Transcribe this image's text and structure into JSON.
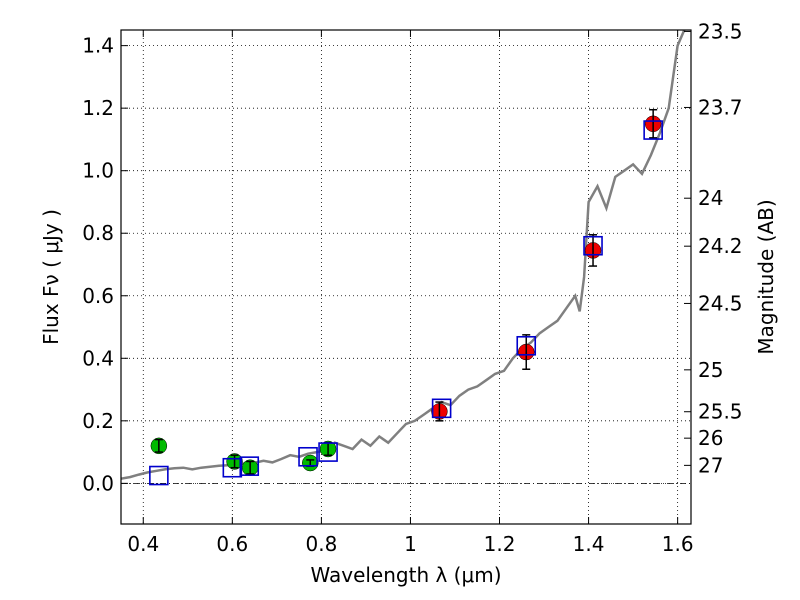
{
  "chart_data": {
    "type": "scatter",
    "xlabel": "Wavelength  λ (μm)",
    "ylabel": "Flux  Fν  ( μJy )",
    "ylabel_right": "Magnitude (AB)",
    "xlim": [
      0.35,
      1.63
    ],
    "ylim": [
      -0.13,
      1.45
    ],
    "x_ticks": [
      0.4,
      0.6,
      0.8,
      1.0,
      1.2,
      1.4,
      1.6
    ],
    "x_tick_labels": [
      "0.4",
      "0.6",
      "0.8",
      "1",
      "1.2",
      "1.4",
      "1.6"
    ],
    "y_ticks": [
      0.0,
      0.2,
      0.4,
      0.6,
      0.8,
      1.0,
      1.2,
      1.4
    ],
    "y_tick_labels": [
      "0.0",
      "0.2",
      "0.4",
      "0.6",
      "0.8",
      "1.0",
      "1.2",
      "1.4"
    ],
    "mag_ticks": [
      23.5,
      23.7,
      24,
      24.2,
      24.5,
      25,
      25.5,
      26,
      27
    ],
    "mag_tick_labels": [
      "23.5",
      "23.7",
      "24",
      "24.2",
      "24.5",
      "25",
      "25.5",
      "26",
      "27"
    ],
    "grid": true,
    "colors": {
      "model": "#808080",
      "green": "#00bb00",
      "red": "#ee0000",
      "box": "#0000cc"
    },
    "model_spectrum": {
      "x": [
        0.35,
        0.37,
        0.39,
        0.41,
        0.43,
        0.45,
        0.47,
        0.49,
        0.51,
        0.53,
        0.55,
        0.57,
        0.59,
        0.61,
        0.63,
        0.65,
        0.67,
        0.69,
        0.71,
        0.73,
        0.75,
        0.77,
        0.79,
        0.81,
        0.83,
        0.85,
        0.87,
        0.89,
        0.91,
        0.93,
        0.95,
        0.97,
        0.99,
        1.01,
        1.03,
        1.05,
        1.07,
        1.09,
        1.11,
        1.13,
        1.15,
        1.17,
        1.19,
        1.21,
        1.23,
        1.25,
        1.27,
        1.29,
        1.31,
        1.33,
        1.35,
        1.37,
        1.38,
        1.39,
        1.4,
        1.42,
        1.44,
        1.46,
        1.48,
        1.5,
        1.52,
        1.54,
        1.56,
        1.58,
        1.6,
        1.615
      ],
      "y": [
        0.015,
        0.02,
        0.028,
        0.035,
        0.04,
        0.045,
        0.048,
        0.05,
        0.045,
        0.05,
        0.053,
        0.056,
        0.058,
        0.06,
        0.064,
        0.066,
        0.072,
        0.067,
        0.078,
        0.09,
        0.085,
        0.095,
        0.1,
        0.105,
        0.13,
        0.12,
        0.11,
        0.14,
        0.12,
        0.15,
        0.13,
        0.16,
        0.19,
        0.2,
        0.22,
        0.24,
        0.26,
        0.25,
        0.28,
        0.3,
        0.31,
        0.33,
        0.35,
        0.36,
        0.4,
        0.43,
        0.45,
        0.48,
        0.5,
        0.52,
        0.56,
        0.6,
        0.55,
        0.66,
        0.9,
        0.95,
        0.88,
        0.98,
        1.0,
        1.02,
        0.99,
        1.05,
        1.12,
        1.2,
        1.4,
        1.45
      ]
    },
    "series": [
      {
        "marker": "circle-green",
        "points": [
          {
            "x": 0.435,
            "y": 0.12,
            "err": 0.02
          },
          {
            "x": 0.605,
            "y": 0.07,
            "err": 0.02
          },
          {
            "x": 0.64,
            "y": 0.05,
            "err": 0.02
          },
          {
            "x": 0.775,
            "y": 0.065,
            "err": 0.01
          },
          {
            "x": 0.815,
            "y": 0.11,
            "err": 0.02
          }
        ]
      },
      {
        "marker": "circle-red",
        "points": [
          {
            "x": 1.065,
            "y": 0.23,
            "err": 0.03
          },
          {
            "x": 1.26,
            "y": 0.42,
            "err": 0.055
          },
          {
            "x": 1.41,
            "y": 0.745,
            "err": 0.05
          },
          {
            "x": 1.545,
            "y": 1.15,
            "err": 0.045
          }
        ]
      },
      {
        "marker": "square-open",
        "points": [
          {
            "x": 0.435,
            "y": 0.025
          },
          {
            "x": 0.6,
            "y": 0.05
          },
          {
            "x": 0.638,
            "y": 0.055
          },
          {
            "x": 0.77,
            "y": 0.085
          },
          {
            "x": 0.815,
            "y": 0.1
          },
          {
            "x": 1.07,
            "y": 0.24
          },
          {
            "x": 1.26,
            "y": 0.44
          },
          {
            "x": 1.41,
            "y": 0.76
          },
          {
            "x": 1.545,
            "y": 1.13
          }
        ]
      }
    ]
  }
}
